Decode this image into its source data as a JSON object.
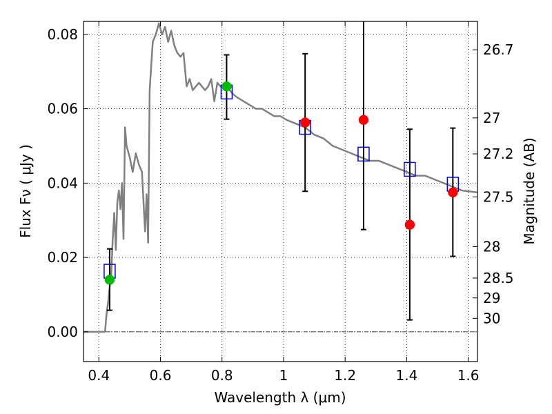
{
  "chart_data": {
    "type": "scatter",
    "xlabel": "Wavelength  λ (μm)",
    "ylabel": "Flux  Fν  ( μJy )",
    "ylabel_right": "Magnitude (AB)",
    "xlim": [
      0.35,
      1.63
    ],
    "ylim": [
      -0.008,
      0.0835
    ],
    "grid": true,
    "x_ticks": [
      {
        "value": 0.4,
        "label": "0.4"
      },
      {
        "value": 0.6,
        "label": "0.6"
      },
      {
        "value": 0.8,
        "label": "0.8"
      },
      {
        "value": 1.0,
        "label": "1"
      },
      {
        "value": 1.2,
        "label": "1.2"
      },
      {
        "value": 1.4,
        "label": "1.4"
      },
      {
        "value": 1.6,
        "label": "1.6"
      }
    ],
    "y_ticks": [
      {
        "value": 0.0,
        "label": "0.00"
      },
      {
        "value": 0.02,
        "label": "0.02"
      },
      {
        "value": 0.04,
        "label": "0.04"
      },
      {
        "value": 0.06,
        "label": "0.06"
      },
      {
        "value": 0.08,
        "label": "0.08"
      }
    ],
    "mag_ticks": [
      {
        "value": 26.7,
        "label": "26.7"
      },
      {
        "value": 27.0,
        "label": "27"
      },
      {
        "value": 27.2,
        "label": "27.2"
      },
      {
        "value": 27.5,
        "label": "27.5"
      },
      {
        "value": 28.0,
        "label": "28"
      },
      {
        "value": 28.5,
        "label": "28.5"
      },
      {
        "value": 29.0,
        "label": "29"
      },
      {
        "value": 30.0,
        "label": "30"
      }
    ],
    "series": [
      {
        "kind": "line",
        "color": "#808080",
        "points": [
          [
            0.35,
            0.0
          ],
          [
            0.42,
            0.0
          ],
          [
            0.425,
            0.005
          ],
          [
            0.43,
            0.008
          ],
          [
            0.435,
            0.012
          ],
          [
            0.44,
            0.015
          ],
          [
            0.445,
            0.025
          ],
          [
            0.45,
            0.032
          ],
          [
            0.455,
            0.022
          ],
          [
            0.46,
            0.035
          ],
          [
            0.465,
            0.038
          ],
          [
            0.47,
            0.033
          ],
          [
            0.475,
            0.04
          ],
          [
            0.48,
            0.025
          ],
          [
            0.485,
            0.055
          ],
          [
            0.49,
            0.05
          ],
          [
            0.5,
            0.047
          ],
          [
            0.51,
            0.043
          ],
          [
            0.52,
            0.048
          ],
          [
            0.53,
            0.045
          ],
          [
            0.54,
            0.043
          ],
          [
            0.55,
            0.027
          ],
          [
            0.555,
            0.037
          ],
          [
            0.56,
            0.024
          ],
          [
            0.565,
            0.065
          ],
          [
            0.575,
            0.078
          ],
          [
            0.585,
            0.08
          ],
          [
            0.595,
            0.083
          ],
          [
            0.605,
            0.08
          ],
          [
            0.615,
            0.082
          ],
          [
            0.625,
            0.078
          ],
          [
            0.635,
            0.081
          ],
          [
            0.645,
            0.077
          ],
          [
            0.655,
            0.075
          ],
          [
            0.665,
            0.074
          ],
          [
            0.675,
            0.075
          ],
          [
            0.685,
            0.066
          ],
          [
            0.695,
            0.068
          ],
          [
            0.705,
            0.065
          ],
          [
            0.715,
            0.066
          ],
          [
            0.725,
            0.067
          ],
          [
            0.735,
            0.066
          ],
          [
            0.745,
            0.065
          ],
          [
            0.755,
            0.066
          ],
          [
            0.765,
            0.068
          ],
          [
            0.775,
            0.062
          ],
          [
            0.785,
            0.067
          ],
          [
            0.795,
            0.066
          ],
          [
            0.805,
            0.066
          ],
          [
            0.815,
            0.066
          ],
          [
            0.825,
            0.065
          ],
          [
            0.835,
            0.064
          ],
          [
            0.85,
            0.063
          ],
          [
            0.87,
            0.062
          ],
          [
            0.89,
            0.061
          ],
          [
            0.91,
            0.06
          ],
          [
            0.93,
            0.06
          ],
          [
            0.95,
            0.059
          ],
          [
            0.97,
            0.058
          ],
          [
            0.99,
            0.058
          ],
          [
            1.01,
            0.057
          ],
          [
            1.04,
            0.056
          ],
          [
            1.07,
            0.055
          ],
          [
            1.1,
            0.053
          ],
          [
            1.13,
            0.052
          ],
          [
            1.16,
            0.05
          ],
          [
            1.19,
            0.049
          ],
          [
            1.22,
            0.048
          ],
          [
            1.25,
            0.047
          ],
          [
            1.28,
            0.046
          ],
          [
            1.31,
            0.046
          ],
          [
            1.34,
            0.045
          ],
          [
            1.37,
            0.044
          ],
          [
            1.4,
            0.043
          ],
          [
            1.43,
            0.042
          ],
          [
            1.46,
            0.042
          ],
          [
            1.49,
            0.041
          ],
          [
            1.52,
            0.04
          ],
          [
            1.55,
            0.039
          ],
          [
            1.58,
            0.038
          ],
          [
            1.63,
            0.0375
          ]
        ]
      },
      {
        "kind": "open-square",
        "color": "#0000cc",
        "points": [
          [
            0.435,
            0.0163
          ],
          [
            0.815,
            0.0645
          ],
          [
            1.07,
            0.055
          ],
          [
            1.26,
            0.0478
          ],
          [
            1.41,
            0.0437
          ],
          [
            1.55,
            0.0397
          ]
        ]
      },
      {
        "kind": "filled-circle",
        "color": "#00bb00",
        "points": [
          [
            0.435,
            0.014
          ],
          [
            0.815,
            0.066
          ]
        ]
      },
      {
        "kind": "filled-circle",
        "color": "#ff0000",
        "points": [
          [
            1.07,
            0.0563
          ],
          [
            1.26,
            0.057
          ],
          [
            1.41,
            0.0288
          ],
          [
            1.55,
            0.0375
          ]
        ]
      }
    ],
    "error_bars": [
      {
        "x": 0.435,
        "low": 0.0058,
        "high": 0.0223
      },
      {
        "x": 0.815,
        "low": 0.0572,
        "high": 0.0745
      },
      {
        "x": 1.07,
        "low": 0.0378,
        "high": 0.0748
      },
      {
        "x": 1.26,
        "low": 0.0275,
        "high": 0.0865
      },
      {
        "x": 1.41,
        "low": 0.0032,
        "high": 0.0545
      },
      {
        "x": 1.55,
        "low": 0.0203,
        "high": 0.0548
      }
    ]
  }
}
